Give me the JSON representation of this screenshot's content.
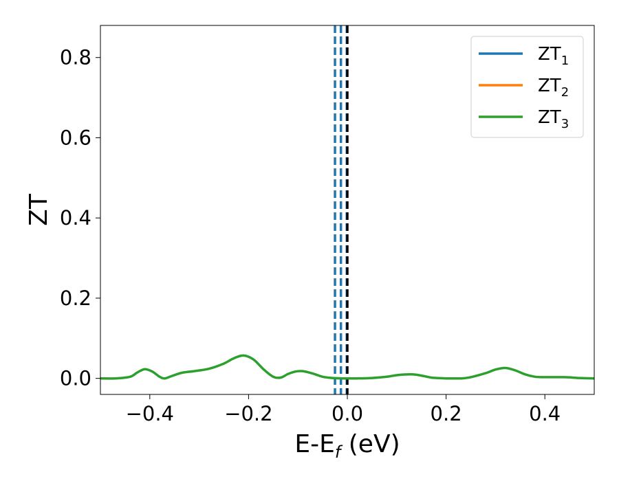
{
  "chart_data": {
    "type": "line",
    "title": "",
    "xlabel": {
      "main": "E-E",
      "sub": "f",
      "unit": " (eV)"
    },
    "ylabel": "ZT",
    "xlim": [
      -0.5,
      0.5
    ],
    "ylim": [
      -0.04,
      0.88
    ],
    "grid": false,
    "legend_position": "top-right",
    "x_ticks": [
      {
        "value": -0.4,
        "label": "−0.4"
      },
      {
        "value": -0.2,
        "label": "−0.2"
      },
      {
        "value": 0.0,
        "label": "0.0"
      },
      {
        "value": 0.2,
        "label": "0.2"
      },
      {
        "value": 0.4,
        "label": "0.4"
      }
    ],
    "y_ticks": [
      {
        "value": 0.0,
        "label": "0.0"
      },
      {
        "value": 0.2,
        "label": "0.2"
      },
      {
        "value": 0.4,
        "label": "0.4"
      },
      {
        "value": 0.6,
        "label": "0.6"
      },
      {
        "value": 0.8,
        "label": "0.8"
      }
    ],
    "vertical_lines": [
      {
        "x": -0.025,
        "style": "dashed",
        "color": "#1f77b4"
      },
      {
        "x": -0.013,
        "style": "dashed",
        "color": "#1f77b4"
      },
      {
        "x": -0.001,
        "style": "dashed",
        "color": "#1f77b4"
      },
      {
        "x": 0.0,
        "style": "dashed",
        "color": "#000000"
      }
    ],
    "series": [
      {
        "name": "ZT",
        "sub": "1",
        "color": "#1f77b4",
        "x": [],
        "y": []
      },
      {
        "name": "ZT",
        "sub": "2",
        "color": "#ff7f0e",
        "x": [],
        "y": []
      },
      {
        "name": "ZT",
        "sub": "3",
        "color": "#2ca02c",
        "x": [
          -0.5,
          -0.47,
          -0.44,
          -0.425,
          -0.41,
          -0.395,
          -0.38,
          -0.37,
          -0.355,
          -0.335,
          -0.31,
          -0.28,
          -0.25,
          -0.23,
          -0.21,
          -0.19,
          -0.17,
          -0.15,
          -0.135,
          -0.12,
          -0.105,
          -0.09,
          -0.07,
          -0.05,
          -0.03,
          -0.01,
          0.0,
          0.02,
          0.05,
          0.08,
          0.1,
          0.13,
          0.15,
          0.17,
          0.2,
          0.23,
          0.25,
          0.28,
          0.3,
          0.32,
          0.34,
          0.36,
          0.38,
          0.4,
          0.44,
          0.47,
          0.5
        ],
        "y": [
          0.0,
          0.0,
          0.004,
          0.015,
          0.023,
          0.017,
          0.004,
          0.0,
          0.006,
          0.014,
          0.018,
          0.024,
          0.037,
          0.05,
          0.057,
          0.047,
          0.023,
          0.004,
          0.002,
          0.011,
          0.017,
          0.018,
          0.012,
          0.004,
          0.001,
          0.0,
          0.0,
          0.0,
          0.001,
          0.004,
          0.008,
          0.01,
          0.007,
          0.002,
          0.0,
          0.0,
          0.003,
          0.013,
          0.022,
          0.026,
          0.02,
          0.01,
          0.004,
          0.003,
          0.003,
          0.001,
          0.0
        ]
      }
    ]
  }
}
